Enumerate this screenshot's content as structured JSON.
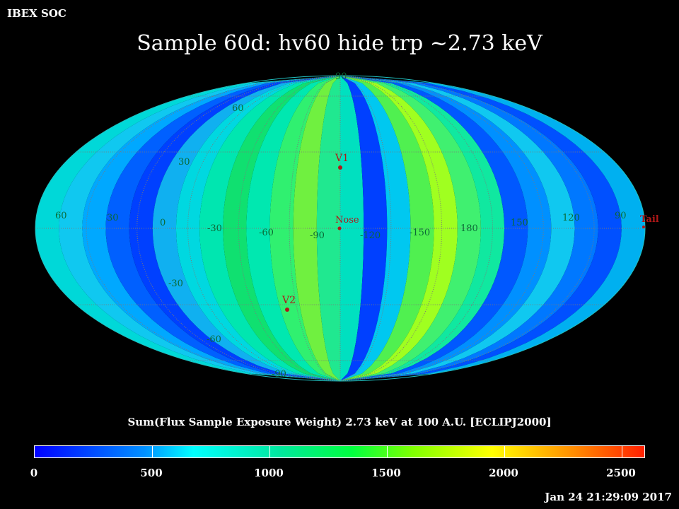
{
  "brand": "IBEX SOC",
  "title": "Sample 60d: hv60 hide trp ~2.73 keV",
  "map": {
    "projection": "Mollweide",
    "lat_labels": [
      "90",
      "60",
      "30",
      "0",
      "-30",
      "-60",
      "-90"
    ],
    "lon_labels": [
      "60",
      "30",
      "0",
      "-30",
      "-60",
      "-90",
      "-120",
      "-150",
      "180",
      "150",
      "120",
      "90"
    ],
    "markers": [
      {
        "label": "V1"
      },
      {
        "label": "Nose"
      },
      {
        "label": "V2"
      },
      {
        "label": "Tail"
      }
    ],
    "colors": {
      "background": "#000000",
      "grid": "#7a7a7a",
      "label": "#0b6a36",
      "marker": "#b01818"
    }
  },
  "colorbar": {
    "title": "Sum(Flux Sample Exposure Weight)  2.73 keV at 100 A.U. [ECLIPJ2000]",
    "ticks": [
      "0",
      "500",
      "1000",
      "1500",
      "2000",
      "2500"
    ],
    "range": [
      0,
      2600
    ]
  },
  "timestamp": "Jan 24 21:29:09 2017"
}
